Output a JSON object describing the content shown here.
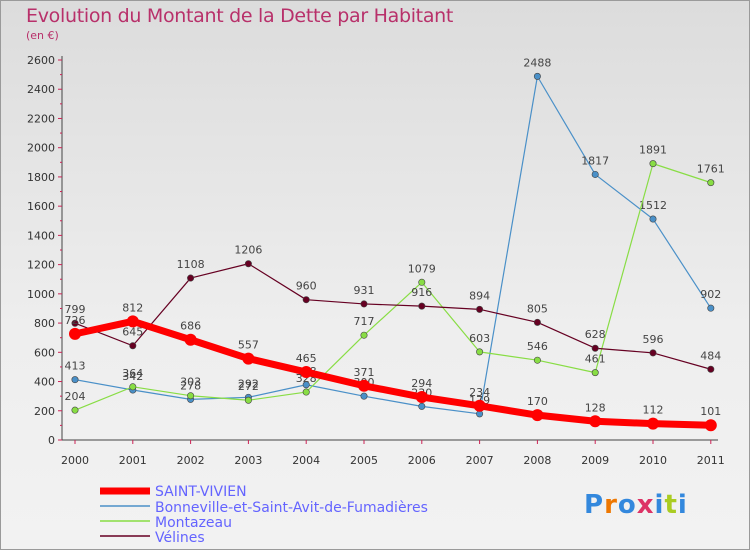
{
  "chart_data": {
    "type": "line",
    "title": "Evolution du Montant de la Dette par Habitant",
    "subtitle": "(en €)",
    "x": [
      "2000",
      "2001",
      "2002",
      "2003",
      "2004",
      "2005",
      "2006",
      "2007",
      "2008",
      "2009",
      "2010",
      "2011"
    ],
    "ylim": [
      0,
      2600
    ],
    "yticks": [
      0,
      200,
      400,
      600,
      800,
      1000,
      1200,
      1400,
      1600,
      1800,
      2000,
      2200,
      2400,
      2600
    ],
    "grid": false,
    "legend_position": "bottom-left",
    "series": [
      {
        "name": "SAINT-VIVIEN",
        "color": "#ff0000",
        "values": [
          726,
          812,
          686,
          557,
          465,
          371,
          294,
          234,
          170,
          128,
          112,
          101
        ]
      },
      {
        "name": "Bonneville-et-Saint-Avit-de-Fumadières",
        "color": "#4a90c8",
        "values": [
          413,
          342,
          278,
          292,
          378,
          300,
          230,
          179,
          2488,
          1817,
          1512,
          902
        ]
      },
      {
        "name": "Montazeau",
        "color": "#88dd44",
        "values": [
          204,
          364,
          303,
          272,
          328,
          717,
          1079,
          603,
          546,
          461,
          1891,
          1761
        ]
      },
      {
        "name": "Vélines",
        "color": "#660022",
        "values": [
          799,
          645,
          1108,
          1206,
          960,
          931,
          916,
          894,
          805,
          628,
          596,
          484
        ]
      }
    ]
  },
  "logo": {
    "letters": [
      "P",
      "r",
      "o",
      "x",
      "i",
      "t",
      "i"
    ],
    "colors": [
      "#3388dd",
      "#ee7700",
      "#3388dd",
      "#dd3366",
      "#3388dd",
      "#aacc22",
      "#3388dd"
    ]
  }
}
